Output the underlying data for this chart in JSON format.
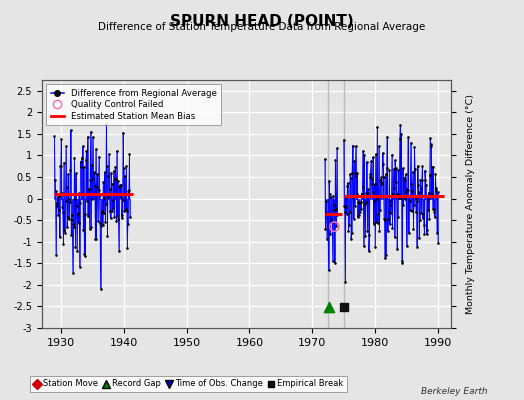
{
  "title": "SPURN HEAD (POINT)",
  "subtitle": "Difference of Station Temperature Data from Regional Average",
  "ylabel": "Monthly Temperature Anomaly Difference (°C)",
  "xlabel_years": [
    1930,
    1940,
    1950,
    1960,
    1970,
    1980,
    1990
  ],
  "ylim": [
    -3,
    2.75
  ],
  "yticks": [
    -3,
    -2.5,
    -2,
    -1.5,
    -1,
    -0.5,
    0,
    0.5,
    1,
    1.5,
    2,
    2.5
  ],
  "xlim": [
    1927,
    1992
  ],
  "background_color": "#e5e5e5",
  "plot_bg_color": "#e5e5e5",
  "grid_color": "#ffffff",
  "segment1_bias": 0.1,
  "segment2a_bias": -0.35,
  "segment2b_bias": 0.05,
  "vertical_line1": 1972.5,
  "vertical_line2": 1975.0,
  "line_color": "#0000ff",
  "dot_color": "#000000",
  "bias_color": "#ff0000",
  "qc_color": "#ff69b4",
  "station_move_color": "#cc0000",
  "record_gap_color": "#008000",
  "obs_change_color": "#0000bb",
  "emp_break_color": "#111111",
  "watermark": "Berkeley Earth",
  "qc_fail_x": 1973.5,
  "qc_fail_y": -0.65,
  "record_gap_x": 1972.6,
  "emp_break_x": 1975.1,
  "marker_y": -2.52
}
